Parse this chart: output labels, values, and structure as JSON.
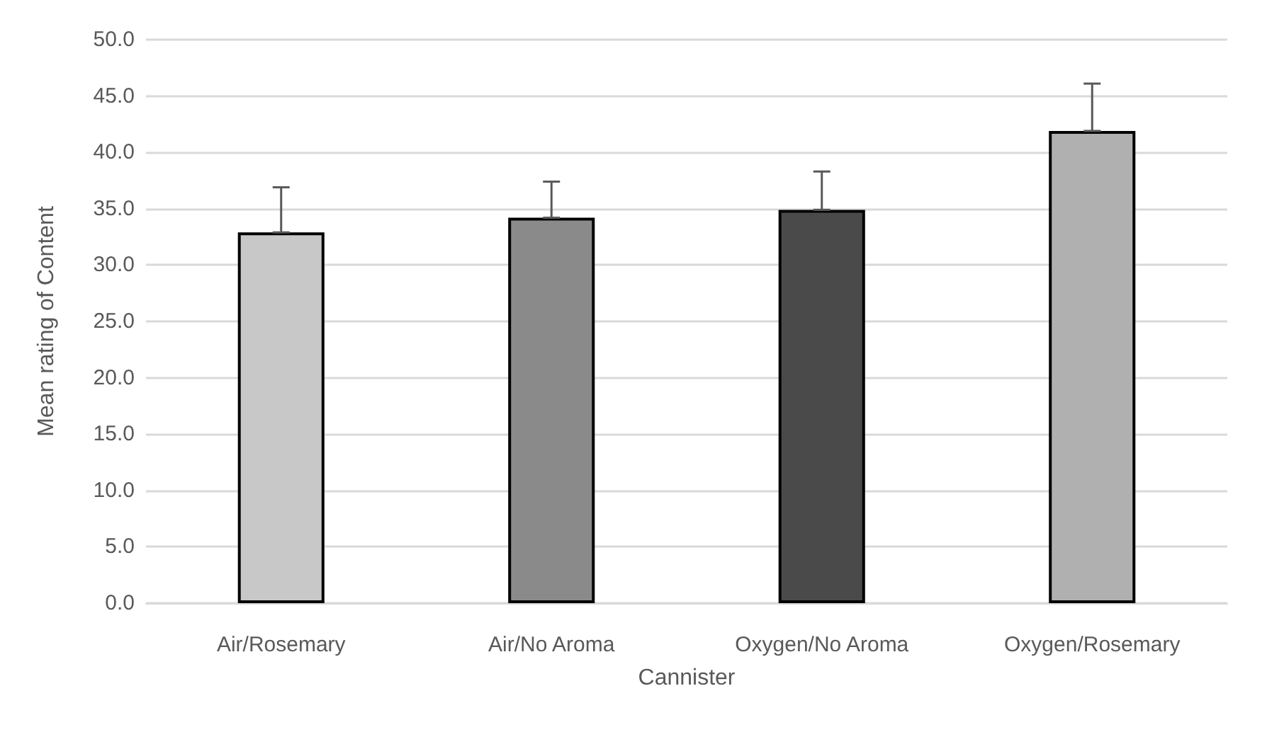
{
  "chart_data": {
    "type": "bar",
    "xlabel": "Cannister",
    "ylabel": "Mean rating of Content",
    "categories": [
      "Air/Rosemary",
      "Air/No Aroma",
      "Oxygen/No Aroma",
      "Oxygen/Rosemary"
    ],
    "values": [
      32.9,
      34.2,
      34.9,
      41.9
    ],
    "errors": [
      [
        32.9,
        36.9
      ],
      [
        34.2,
        37.4
      ],
      [
        34.9,
        38.3
      ],
      [
        41.9,
        46.1
      ]
    ],
    "colors": [
      "#c8c8c8",
      "#8a8a8a",
      "#4a4a4a",
      "#b0b0b0"
    ],
    "ylim": [
      0,
      50
    ],
    "yticks": [
      {
        "value": 0,
        "label": "0.0"
      },
      {
        "value": 5,
        "label": "5.0"
      },
      {
        "value": 10,
        "label": "10.0"
      },
      {
        "value": 15,
        "label": "15.0"
      },
      {
        "value": 20,
        "label": "20.0"
      },
      {
        "value": 25,
        "label": "25.0"
      },
      {
        "value": 30,
        "label": "30.0"
      },
      {
        "value": 35,
        "label": "35.0"
      },
      {
        "value": 40,
        "label": "40.0"
      },
      {
        "value": 45,
        "label": "45.0"
      },
      {
        "value": 50,
        "label": "50.0"
      }
    ],
    "grid": "y"
  }
}
